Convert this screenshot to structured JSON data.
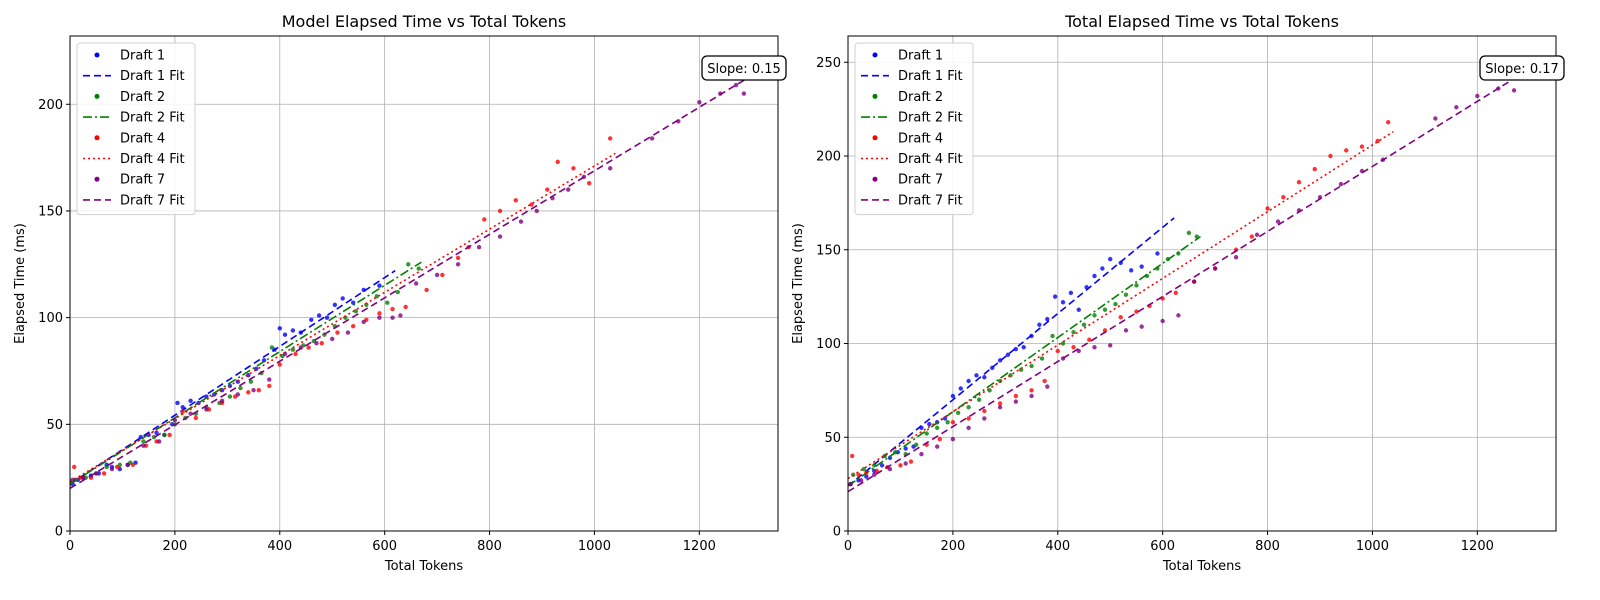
{
  "chart_data": [
    {
      "type": "scatter",
      "title": "Model Elapsed Time vs Total Tokens",
      "xlabel": "Total Tokens",
      "ylabel": "Elapsed Time (ms)",
      "xlim": [
        0,
        1350
      ],
      "ylim": [
        0,
        232
      ],
      "xticks": [
        0,
        200,
        400,
        600,
        800,
        1000,
        1200
      ],
      "yticks": [
        0,
        50,
        100,
        150,
        200
      ],
      "grid": true,
      "legend_position": "top-left",
      "annotation": "Slope: 0.15",
      "series": [
        {
          "name": "Draft 1",
          "color": "#0000ff",
          "marker": "dot",
          "fit": {
            "name": "Draft 1 Fit",
            "dash": "dashed",
            "x0": 0,
            "y0": 22,
            "x1": 620,
            "y1": 122
          },
          "x": [
            5,
            15,
            25,
            40,
            55,
            70,
            80,
            95,
            110,
            125,
            135,
            150,
            165,
            180,
            195,
            205,
            215,
            230,
            245,
            260,
            275,
            290,
            305,
            320,
            340,
            355,
            370,
            390,
            400,
            410,
            425,
            440,
            460,
            475,
            490,
            505,
            520,
            540,
            560,
            590
          ],
          "y": [
            22,
            24,
            25,
            26,
            27,
            31,
            30,
            29,
            31,
            32,
            44,
            45,
            46,
            45,
            50,
            60,
            58,
            61,
            60,
            63,
            64,
            66,
            68,
            70,
            73,
            76,
            80,
            85,
            95,
            92,
            94,
            93,
            99,
            101,
            100,
            106,
            109,
            107,
            113,
            115
          ]
        },
        {
          "name": "Draft 2",
          "color": "#008000",
          "marker": "dot",
          "fit": {
            "name": "Draft 2 Fit",
            "dash": "dashdot",
            "x0": 0,
            "y0": 22,
            "x1": 670,
            "y1": 126
          },
          "x": [
            10,
            30,
            50,
            70,
            95,
            115,
            140,
            160,
            180,
            200,
            220,
            240,
            260,
            285,
            305,
            325,
            345,
            365,
            385,
            405,
            425,
            445,
            465,
            485,
            505,
            525,
            545,
            565,
            585,
            605,
            625,
            645,
            665
          ],
          "y": [
            24,
            25,
            27,
            30,
            31,
            32,
            42,
            44,
            45,
            50,
            53,
            55,
            58,
            60,
            63,
            67,
            70,
            74,
            86,
            82,
            85,
            87,
            89,
            92,
            96,
            100,
            103,
            106,
            110,
            107,
            112,
            125,
            123
          ]
        },
        {
          "name": "Draft 4",
          "color": "#ff0000",
          "marker": "dot",
          "fit": {
            "name": "Draft 4 Fit",
            "dash": "dotted",
            "x0": 0,
            "y0": 23,
            "x1": 1040,
            "y1": 177
          },
          "x": [
            8,
            20,
            40,
            65,
            90,
            120,
            145,
            165,
            190,
            215,
            240,
            265,
            290,
            315,
            340,
            360,
            380,
            400,
            430,
            455,
            480,
            510,
            540,
            565,
            590,
            615,
            640,
            680,
            710,
            740,
            760,
            790,
            820,
            850,
            880,
            910,
            930,
            960,
            990,
            1030
          ],
          "y": [
            30,
            25,
            25,
            27,
            30,
            31,
            40,
            42,
            45,
            56,
            53,
            57,
            60,
            63,
            65,
            66,
            68,
            78,
            83,
            86,
            88,
            93,
            96,
            99,
            102,
            104,
            105,
            113,
            120,
            128,
            133,
            146,
            150,
            155,
            153,
            160,
            173,
            170,
            163,
            184
          ]
        },
        {
          "name": "Draft 7",
          "color": "#800080",
          "marker": "dot",
          "fit": {
            "name": "Draft 7 Fit",
            "dash": "dashed",
            "x0": 0,
            "y0": 20,
            "x1": 1290,
            "y1": 212
          },
          "x": [
            5,
            25,
            50,
            80,
            110,
            140,
            170,
            200,
            230,
            260,
            290,
            320,
            350,
            380,
            410,
            440,
            470,
            500,
            530,
            560,
            590,
            615,
            630,
            660,
            700,
            740,
            780,
            820,
            860,
            890,
            920,
            950,
            980,
            1030,
            1110,
            1160,
            1200,
            1240,
            1270,
            1285
          ],
          "y": [
            24,
            25,
            27,
            29,
            31,
            40,
            42,
            52,
            55,
            57,
            61,
            64,
            66,
            71,
            83,
            86,
            88,
            90,
            93,
            98,
            100,
            100,
            101,
            116,
            120,
            125,
            133,
            138,
            145,
            150,
            156,
            160,
            166,
            170,
            184,
            192,
            201,
            205,
            209,
            205
          ]
        }
      ]
    },
    {
      "type": "scatter",
      "title": "Total Elapsed Time vs Total Tokens",
      "xlabel": "Total Tokens",
      "ylabel": "Elapsed Time (ms)",
      "xlim": [
        0,
        1350
      ],
      "ylim": [
        0,
        264
      ],
      "xticks": [
        0,
        200,
        400,
        600,
        800,
        1000,
        1200
      ],
      "yticks": [
        0,
        50,
        100,
        150,
        200,
        250
      ],
      "grid": true,
      "legend_position": "top-left",
      "annotation": "Slope: 0.17",
      "series": [
        {
          "name": "Draft 1",
          "color": "#0000ff",
          "marker": "dot",
          "fit": {
            "name": "Draft 1 Fit",
            "dash": "dashed",
            "x0": 0,
            "y0": 24,
            "x1": 622,
            "y1": 167
          },
          "x": [
            5,
            20,
            35,
            50,
            65,
            80,
            95,
            110,
            125,
            140,
            155,
            170,
            185,
            200,
            215,
            230,
            245,
            260,
            275,
            290,
            305,
            320,
            335,
            350,
            365,
            380,
            395,
            410,
            425,
            440,
            455,
            470,
            485,
            500,
            520,
            540,
            560,
            590
          ],
          "y": [
            25,
            27,
            29,
            32,
            35,
            39,
            42,
            44,
            45,
            55,
            57,
            58,
            60,
            72,
            76,
            80,
            83,
            82,
            87,
            91,
            94,
            97,
            98,
            104,
            110,
            113,
            125,
            122,
            127,
            118,
            130,
            136,
            140,
            145,
            143,
            139,
            141,
            148
          ]
        },
        {
          "name": "Draft 2",
          "color": "#008000",
          "marker": "dot",
          "fit": {
            "name": "Draft 2 Fit",
            "dash": "dashdot",
            "x0": 0,
            "y0": 24,
            "x1": 672,
            "y1": 157
          },
          "x": [
            10,
            30,
            50,
            70,
            90,
            110,
            130,
            150,
            170,
            190,
            210,
            230,
            250,
            270,
            290,
            310,
            330,
            350,
            370,
            390,
            410,
            430,
            450,
            470,
            490,
            510,
            530,
            550,
            570,
            590,
            610,
            630,
            650,
            665
          ],
          "y": [
            30,
            33,
            35,
            40,
            42,
            41,
            46,
            52,
            55,
            58,
            63,
            66,
            70,
            75,
            80,
            83,
            86,
            88,
            92,
            104,
            100,
            106,
            110,
            115,
            118,
            121,
            126,
            131,
            136,
            140,
            145,
            148,
            159,
            157
          ]
        },
        {
          "name": "Draft 4",
          "color": "#ff0000",
          "marker": "dot",
          "fit": {
            "name": "Draft 4 Fit",
            "dash": "dotted",
            "x0": 0,
            "y0": 28,
            "x1": 1040,
            "y1": 213
          },
          "x": [
            8,
            20,
            35,
            55,
            75,
            100,
            120,
            150,
            175,
            200,
            230,
            260,
            290,
            320,
            350,
            375,
            400,
            430,
            460,
            490,
            520,
            550,
            575,
            600,
            625,
            660,
            700,
            740,
            770,
            800,
            830,
            860,
            890,
            920,
            950,
            980,
            1010,
            1030
          ],
          "y": [
            40,
            30,
            31,
            32,
            34,
            35,
            37,
            46,
            49,
            58,
            60,
            64,
            68,
            72,
            75,
            80,
            96,
            98,
            102,
            107,
            114,
            117,
            120,
            124,
            127,
            133,
            140,
            150,
            157,
            172,
            178,
            186,
            193,
            200,
            203,
            205,
            208,
            218
          ]
        },
        {
          "name": "Draft 7",
          "color": "#800080",
          "marker": "dot",
          "fit": {
            "name": "Draft 7 Fit",
            "dash": "dashed",
            "x0": 0,
            "y0": 21,
            "x1": 1280,
            "y1": 243
          },
          "x": [
            5,
            25,
            50,
            80,
            110,
            140,
            170,
            200,
            230,
            260,
            290,
            320,
            350,
            380,
            410,
            440,
            470,
            500,
            530,
            560,
            600,
            630,
            660,
            700,
            740,
            780,
            820,
            860,
            900,
            940,
            980,
            1020,
            1120,
            1160,
            1200,
            1240,
            1270
          ],
          "y": [
            25,
            27,
            30,
            33,
            36,
            41,
            45,
            49,
            55,
            60,
            66,
            69,
            72,
            77,
            92,
            96,
            98,
            99,
            107,
            109,
            112,
            115,
            133,
            140,
            146,
            158,
            165,
            171,
            178,
            185,
            192,
            198,
            220,
            226,
            232,
            236,
            235
          ]
        }
      ]
    }
  ]
}
